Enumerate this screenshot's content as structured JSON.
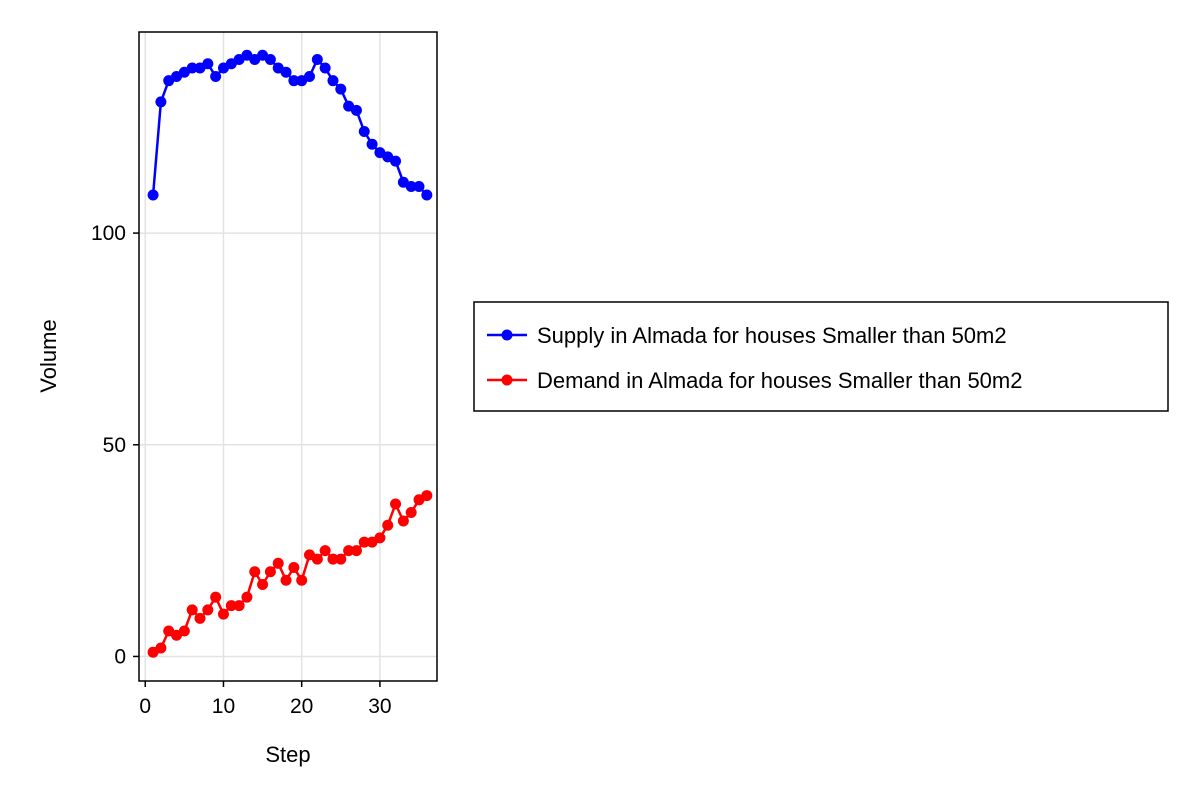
{
  "chart_data": {
    "type": "line",
    "xlabel": "Step",
    "ylabel": "Volume",
    "xlim": [
      -0.8,
      37.3
    ],
    "ylim": [
      -5.8,
      147.5
    ],
    "xticks": [
      0,
      10,
      20,
      30
    ],
    "yticks": [
      0,
      50,
      100
    ],
    "grid": true,
    "legend_position": "right",
    "x": [
      1,
      2,
      3,
      4,
      5,
      6,
      7,
      8,
      9,
      10,
      11,
      12,
      13,
      14,
      15,
      16,
      17,
      18,
      19,
      20,
      21,
      22,
      23,
      24,
      25,
      26,
      27,
      28,
      29,
      30,
      31,
      32,
      33,
      34,
      35,
      36
    ],
    "series": [
      {
        "name": "Supply in Almada for houses Smaller than 50m2",
        "color": "#0000ff",
        "marker": "circle",
        "values": [
          109,
          131,
          136,
          137,
          138,
          139,
          139,
          140,
          137,
          139,
          140,
          141,
          142,
          141,
          142,
          141,
          139,
          138,
          136,
          136,
          137,
          141,
          139,
          136,
          134,
          130,
          129,
          124,
          121,
          119,
          118,
          117,
          112,
          111,
          111,
          109
        ]
      },
      {
        "name": "Demand in Almada for houses Smaller than 50m2",
        "color": "#ff0000",
        "marker": "circle",
        "values": [
          1,
          2,
          6,
          5,
          6,
          11,
          9,
          11,
          14,
          10,
          12,
          12,
          14,
          20,
          17,
          20,
          22,
          18,
          21,
          18,
          24,
          23,
          25,
          23,
          23,
          25,
          25,
          27,
          27,
          28,
          31,
          36,
          32,
          34,
          37,
          38
        ]
      }
    ]
  }
}
